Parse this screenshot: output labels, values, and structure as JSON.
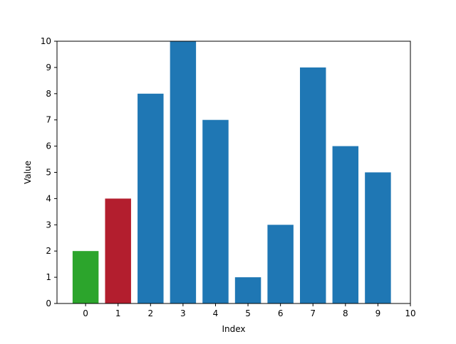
{
  "chart_data": {
    "type": "bar",
    "categories": [
      "0",
      "1",
      "2",
      "3",
      "4",
      "5",
      "6",
      "7",
      "8",
      "9"
    ],
    "x": [
      0,
      1,
      2,
      3,
      4,
      5,
      6,
      7,
      8,
      9
    ],
    "values": [
      2,
      4,
      8,
      10,
      7,
      1,
      3,
      9,
      6,
      5
    ],
    "bar_colors": [
      "#2ca52c",
      "#b31e2e",
      "#1f77b4",
      "#1f77b4",
      "#1f77b4",
      "#1f77b4",
      "#1f77b4",
      "#1f77b4",
      "#1f77b4",
      "#1f77b4"
    ],
    "title": "",
    "xlabel": "Index",
    "ylabel": "Value",
    "xlim": [
      -0.88,
      10
    ],
    "ylim": [
      0,
      10
    ],
    "xticks": [
      0,
      1,
      2,
      3,
      4,
      5,
      6,
      7,
      8,
      9,
      10
    ],
    "yticks": [
      0,
      1,
      2,
      3,
      4,
      5,
      6,
      7,
      8,
      9,
      10
    ],
    "bar_width": 0.8,
    "grid": false,
    "legend": "none"
  }
}
